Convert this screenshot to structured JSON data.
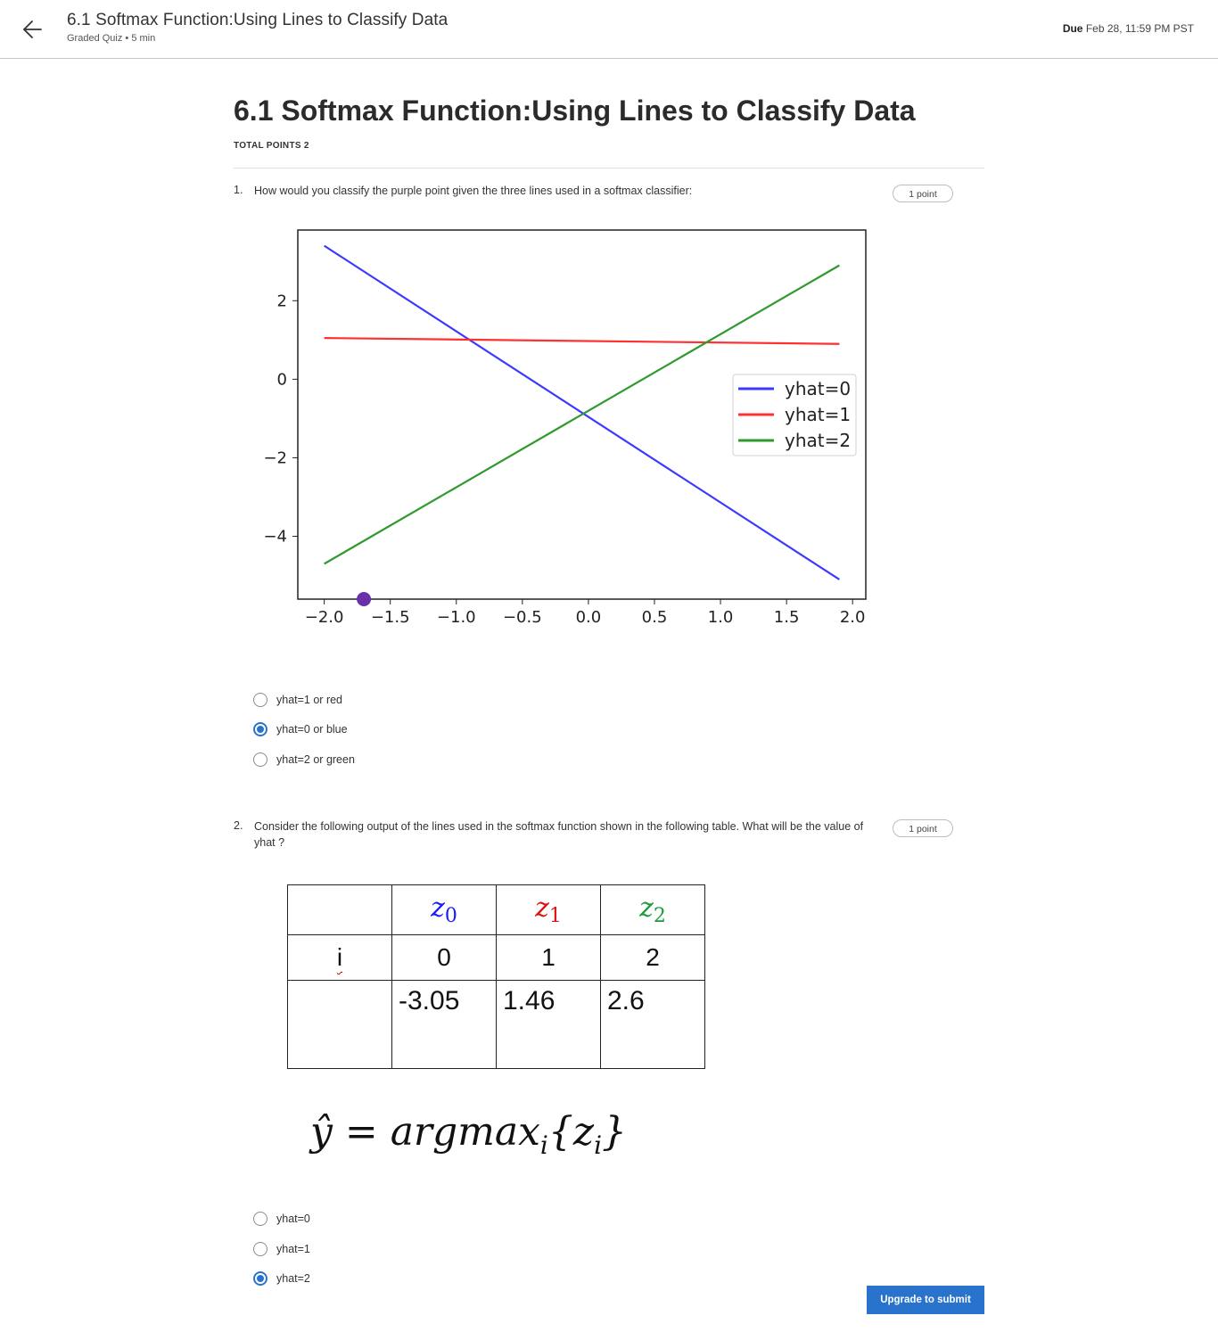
{
  "header": {
    "title": "6.1 Softmax Function:Using Lines to Classify Data",
    "subtitle": "Graded Quiz • 5 min",
    "due_label": "Due",
    "due_date": "Feb 28, 11:59 PM PST"
  },
  "quiz": {
    "title": "6.1 Softmax Function:Using Lines to Classify Data",
    "total_points": "TOTAL POINTS 2"
  },
  "questions": [
    {
      "number": "1.",
      "text": "How would you classify the purple point given the three lines used in a softmax classifier:",
      "points": "1 point",
      "options": [
        {
          "label": "yhat=1 or red",
          "checked": false
        },
        {
          "label": "yhat=0 or blue",
          "checked": true
        },
        {
          "label": "yhat=2 or green",
          "checked": false
        }
      ]
    },
    {
      "number": "2.",
      "text": "Consider the following output of the lines used in the softmax function shown in the following table. What will be the value of yhat ?",
      "points": "1 point",
      "table": {
        "headers": [
          "z",
          "z",
          "z"
        ],
        "subscripts": [
          "0",
          "1",
          "2"
        ],
        "header_colors": [
          "#1a1aff",
          "#e01010",
          "#1a9a3a"
        ],
        "i_label": "i",
        "i_values": [
          "0",
          "1",
          "2"
        ],
        "z_values": [
          "-3.05",
          "1.46",
          "2.6"
        ]
      },
      "formula": {
        "lhs": "ŷ = argmax",
        "sub": "i",
        "rhs": "{z",
        "sub2": "i",
        "close": "}"
      },
      "options": [
        {
          "label": "yhat=0",
          "checked": false
        },
        {
          "label": "yhat=1",
          "checked": false
        },
        {
          "label": "yhat=2",
          "checked": true
        }
      ]
    }
  ],
  "chart_data": {
    "type": "line",
    "xlim": [
      -2.2,
      2.1
    ],
    "ylim": [
      -5.6,
      3.8
    ],
    "xticks": [
      "−2.0",
      "−1.5",
      "−1.0",
      "−0.5",
      "0.0",
      "0.5",
      "1.0",
      "1.5",
      "2.0"
    ],
    "xtick_values": [
      -2.0,
      -1.5,
      -1.0,
      -0.5,
      0.0,
      0.5,
      1.0,
      1.5,
      2.0
    ],
    "yticks": [
      "2",
      "0",
      "−2",
      "−4"
    ],
    "ytick_values": [
      2,
      0,
      -2,
      -4
    ],
    "series": [
      {
        "name": "yhat=0",
        "color": "#3b3bff",
        "x": [
          -2.0,
          1.9
        ],
        "y": [
          3.4,
          -5.1
        ]
      },
      {
        "name": "yhat=1",
        "color": "#ff3030",
        "x": [
          -2.0,
          1.9
        ],
        "y": [
          1.05,
          0.9
        ]
      },
      {
        "name": "yhat=2",
        "color": "#2e9a2e",
        "x": [
          -2.0,
          1.9
        ],
        "y": [
          -4.7,
          2.9
        ]
      }
    ],
    "point": {
      "x": -1.7,
      "y": -5.6,
      "color": "#6b2fa8"
    },
    "legend_position": "center-right"
  },
  "submit": {
    "label": "Upgrade to submit"
  }
}
